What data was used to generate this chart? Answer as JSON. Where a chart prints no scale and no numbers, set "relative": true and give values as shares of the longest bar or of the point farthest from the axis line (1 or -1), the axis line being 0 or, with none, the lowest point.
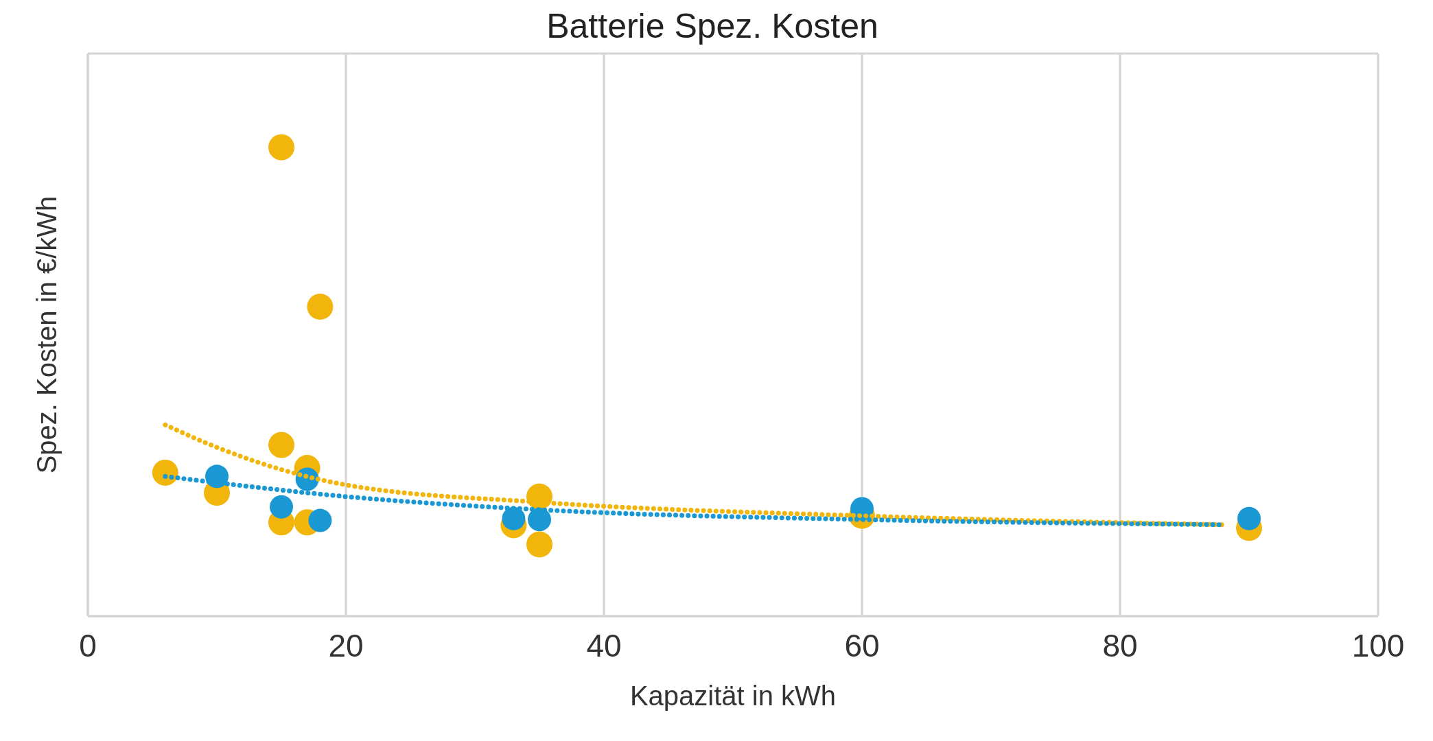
{
  "chart_data": {
    "type": "scatter",
    "title": "Batterie Spez. Kosten",
    "xlabel": "Kapazität in kWh",
    "ylabel": "Spez. Kosten in €/kWh",
    "relative": true,
    "xlim": [
      0,
      100
    ],
    "xticks": [
      0,
      20,
      40,
      60,
      80,
      100
    ],
    "grid": true,
    "legend": false,
    "marker": "circle",
    "series": [
      {
        "color": "#f2b50c",
        "x": [
          15,
          18,
          15,
          6,
          10,
          17,
          15,
          17,
          35,
          33,
          35,
          60,
          90
        ],
        "values": [
          1,
          0.66,
          0.365,
          0.306,
          0.263,
          0.316,
          0.2,
          0.2,
          0.255,
          0.194,
          0.153,
          0.214,
          0.188
        ]
      },
      {
        "color": "#1a98d4",
        "x": [
          10,
          15,
          17,
          18,
          33,
          35,
          60,
          90
        ],
        "values": [
          0.298,
          0.233,
          0.292,
          0.204,
          0.208,
          0.206,
          0.229,
          0.208
        ]
      },
      {
        "type": "line",
        "color": "#f2b50c",
        "line_style": "dotted",
        "marker": "none",
        "x": [
          6,
          10,
          20,
          35,
          60,
          88
        ],
        "values": [
          0.408,
          0.36,
          0.28,
          0.243,
          0.214,
          0.195
        ]
      },
      {
        "type": "line",
        "color": "#1a98d4",
        "line_style": "dotted",
        "marker": "none",
        "x": [
          6,
          20,
          35,
          60,
          88
        ],
        "values": [
          0.298,
          0.255,
          0.227,
          0.206,
          0.195
        ]
      }
    ]
  }
}
